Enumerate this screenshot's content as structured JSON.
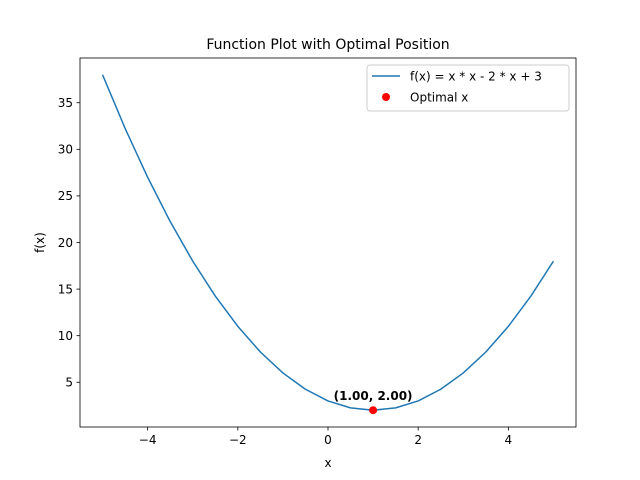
{
  "chart_data": {
    "type": "line",
    "title": "Function Plot with Optimal Position",
    "xlabel": "x",
    "ylabel": "f(x)",
    "xlim": [
      -5.5,
      5.5
    ],
    "ylim": [
      0.2,
      39.8
    ],
    "xticks": [
      -4,
      -2,
      0,
      2,
      4
    ],
    "xtick_labels": [
      "−4",
      "−2",
      "0",
      "2",
      "4"
    ],
    "yticks": [
      5,
      10,
      15,
      20,
      25,
      30,
      35
    ],
    "ytick_labels": [
      "5",
      "10",
      "15",
      "20",
      "25",
      "30",
      "35"
    ],
    "grid": false,
    "legend_position": "top-right",
    "series": [
      {
        "name": "f(x) = x * x - 2 * x + 3",
        "kind": "line",
        "color": "#1f77b4",
        "x": [
          -5.0,
          -4.5,
          -4.0,
          -3.5,
          -3.0,
          -2.5,
          -2.0,
          -1.5,
          -1.0,
          -0.5,
          0.0,
          0.5,
          1.0,
          1.5,
          2.0,
          2.5,
          3.0,
          3.5,
          4.0,
          4.5,
          5.0
        ],
        "y": [
          38.0,
          32.25,
          27.0,
          22.25,
          18.0,
          14.25,
          11.0,
          8.25,
          6.0,
          4.25,
          3.0,
          2.25,
          2.0,
          2.25,
          3.0,
          4.25,
          6.0,
          8.25,
          11.0,
          14.25,
          18.0
        ]
      },
      {
        "name": "Optimal x",
        "kind": "scatter",
        "color": "#ff0000",
        "x": [
          1.0
        ],
        "y": [
          2.0
        ]
      }
    ],
    "annotations": [
      {
        "text": "(1.00, 2.00)",
        "x": 1.0,
        "y": 2.0
      }
    ]
  }
}
